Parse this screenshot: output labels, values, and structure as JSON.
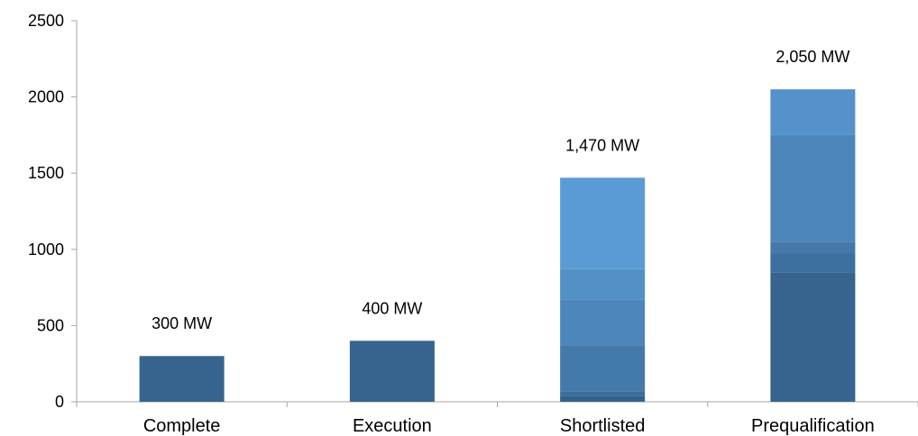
{
  "chart_data": {
    "type": "bar",
    "stacked": true,
    "title": "",
    "xlabel": "",
    "ylabel": "",
    "ylim": [
      0,
      2500
    ],
    "yticks": [
      0,
      500,
      1000,
      1500,
      2000,
      2500
    ],
    "grid": false,
    "legend": "none",
    "categories": [
      "Complete",
      "Execution",
      "Shortlisted",
      "Prequalification"
    ],
    "segments": [
      [
        300
      ],
      [
        400
      ],
      [
        40,
        30,
        300,
        300,
        200,
        600
      ],
      [
        850,
        125,
        75,
        700,
        300
      ]
    ],
    "segment_colors": [
      [
        "#36648f"
      ],
      [
        "#36648f"
      ],
      [
        "#33618c",
        "#3b6e9c",
        "#4479ab",
        "#4c86ba",
        "#5290c6",
        "#5a9bd5"
      ],
      [
        "#36648f",
        "#3e709f",
        "#4679a9",
        "#4c86ba",
        "#5592cc"
      ]
    ],
    "totals": [
      300,
      400,
      1470,
      2050
    ],
    "data_labels": [
      "300 MW",
      "400 MW",
      "1,470 MW",
      "2,050 MW"
    ]
  }
}
